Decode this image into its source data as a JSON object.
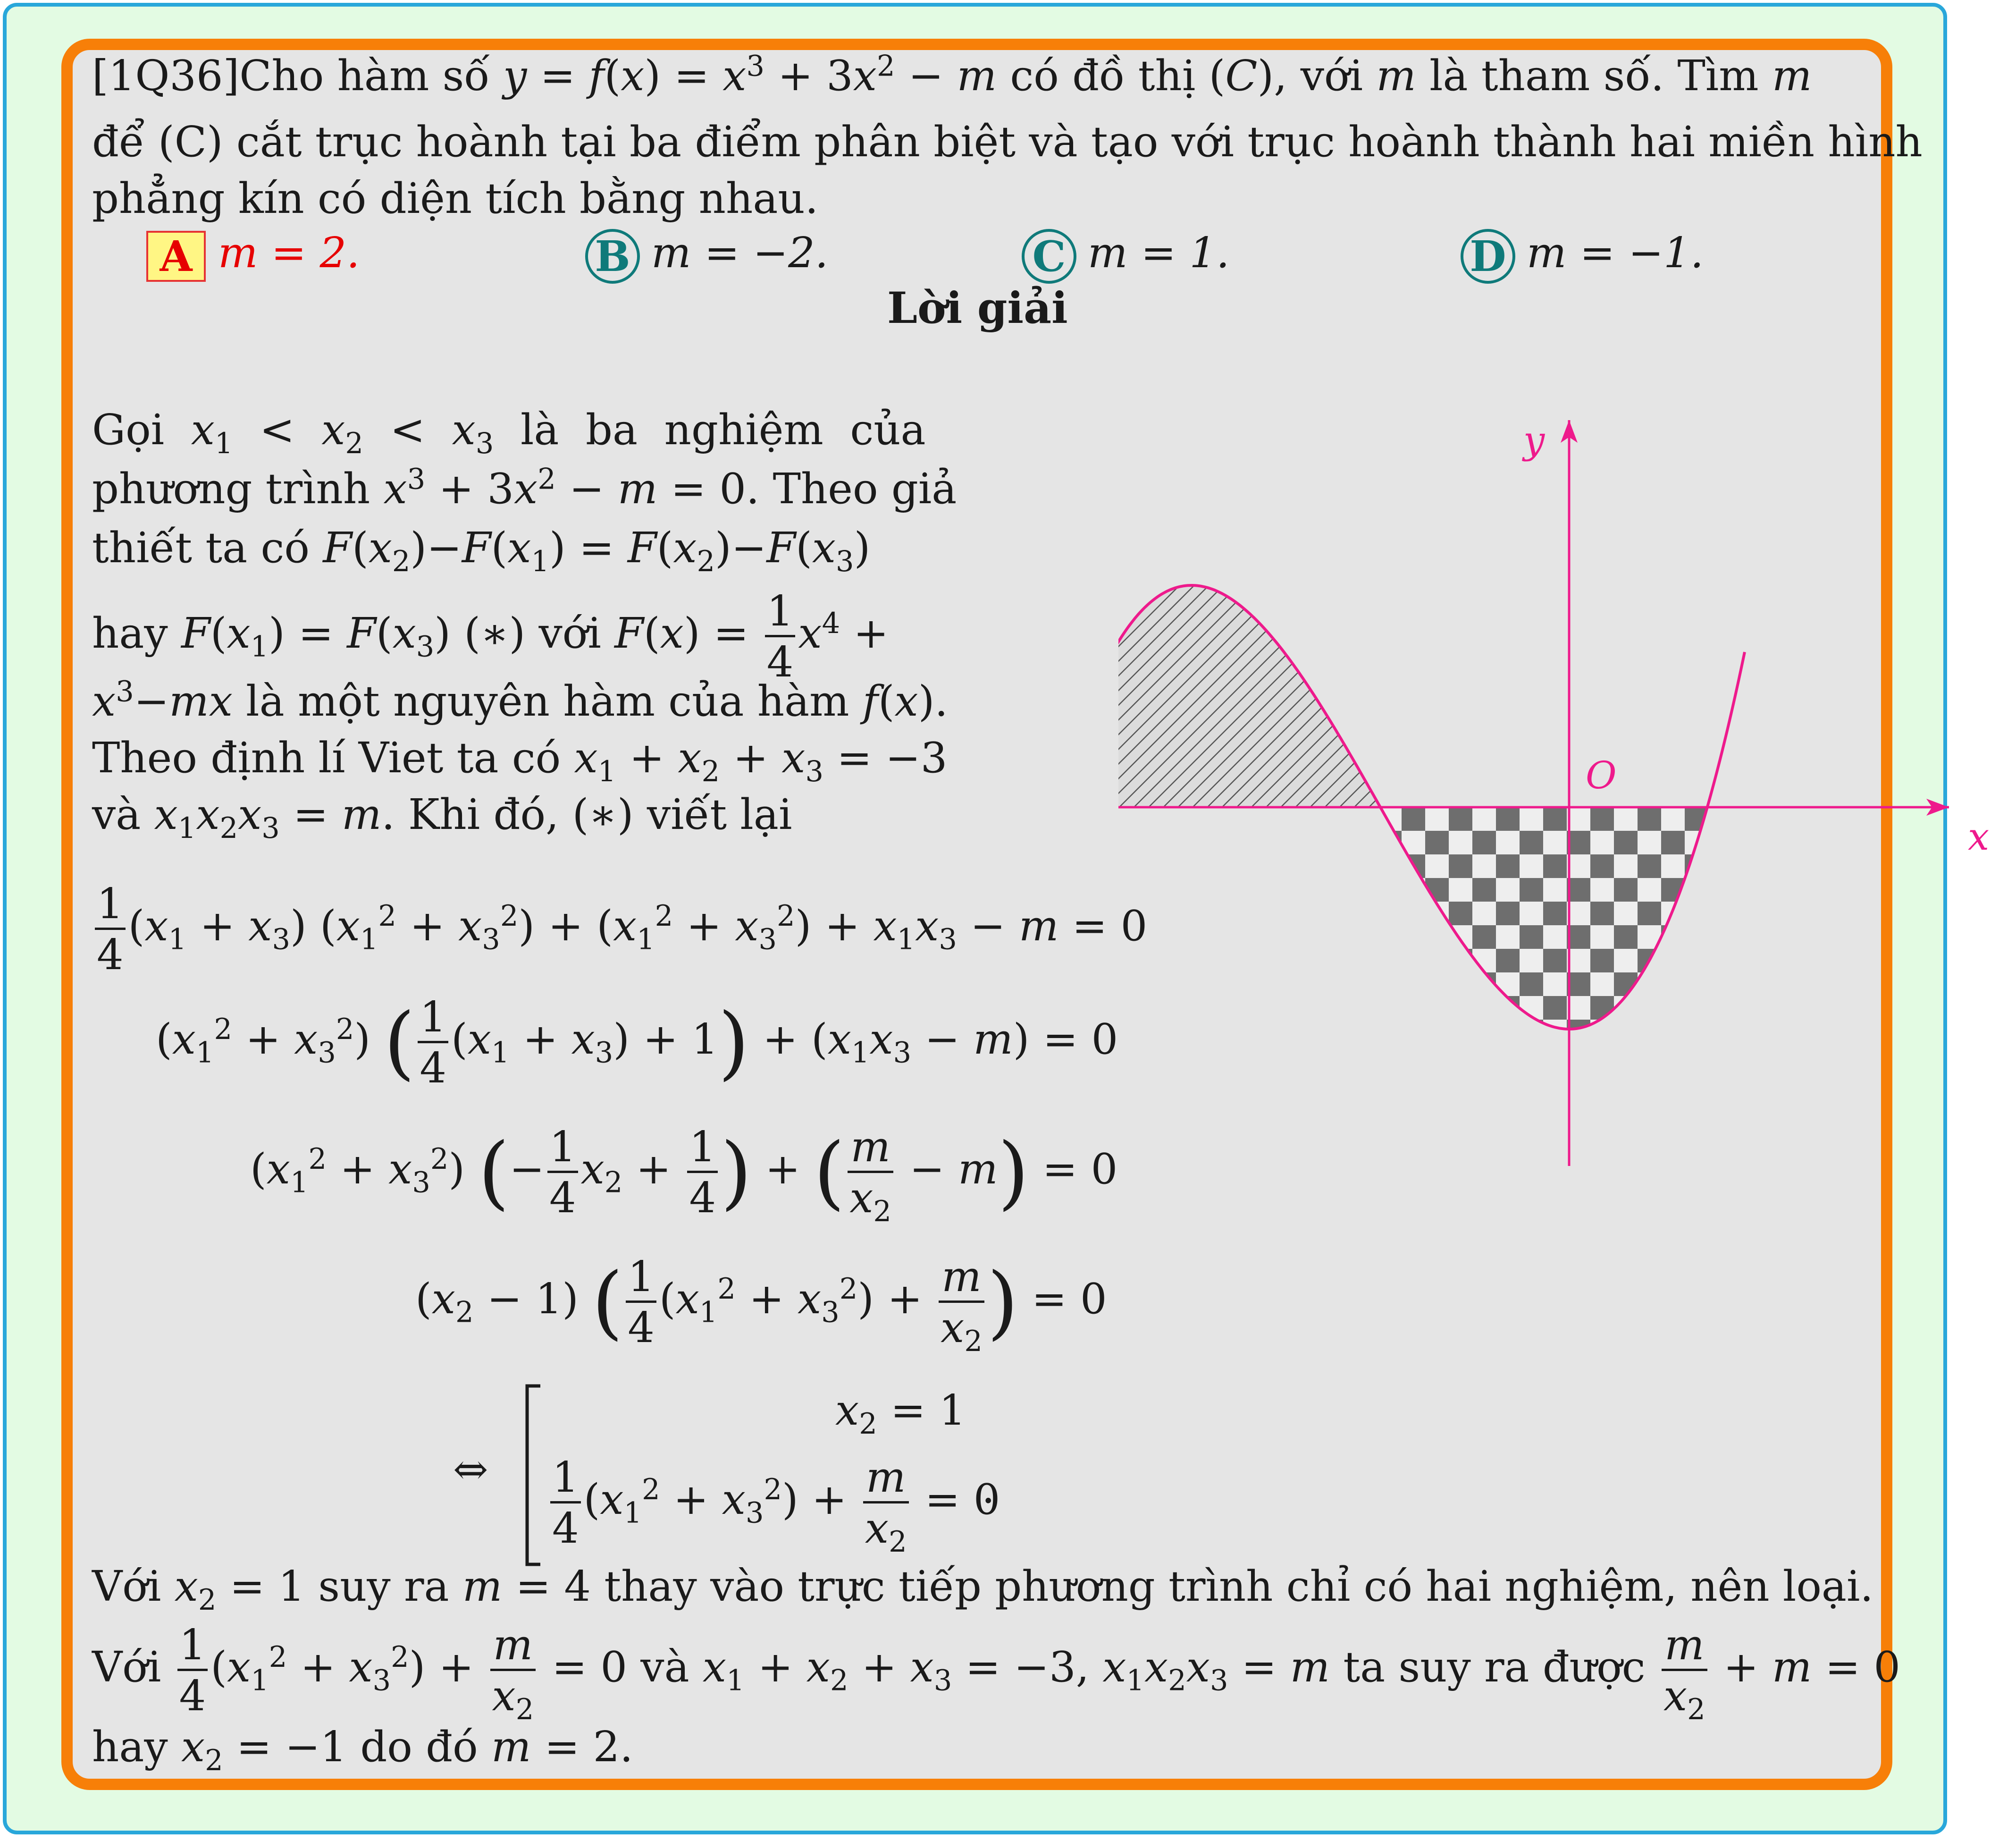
{
  "question": {
    "id": "[1Q36]",
    "line1": "Cho hàm số y = f(x) = x³ + 3x² − m có đồ thị (C), với m là tham số. Tìm m",
    "line2": "để (C) cắt trục hoành tại ba điểm phân biệt và tạo với trục hoành thành hai miền hình",
    "line3": "phẳng kín có diện tích bằng nhau."
  },
  "options": [
    {
      "letter": "A",
      "text": "m = 2.",
      "correct": true
    },
    {
      "letter": "B",
      "text": "m = −2.",
      "correct": false
    },
    {
      "letter": "C",
      "text": "m = 1.",
      "correct": false
    },
    {
      "letter": "D",
      "text": "m = −1.",
      "correct": false
    }
  ],
  "solution": {
    "heading": "Lời giải",
    "p1": "Gọi x₁ < x₂ < x₃ là ba nghiệm của",
    "p2": "phương trình x³ + 3x² − m = 0. Theo giả",
    "p3": "thiết ta có F(x₂)−F(x₁) = F(x₂)−F(x₃)",
    "p4": "hay F(x₁) = F(x₃) (∗) với F(x) = ¼x⁴ +",
    "p5": "x³−mx là một nguyên hàm của hàm f(x).",
    "p6": "Theo định lí Viet ta có x₁ + x₂ + x₃ = −3",
    "p7": "và x₁x₂x₃ = m. Khi đó, (∗) viết lại",
    "eq1": "¼(x₁ + x₃)(x₁² + x₃²) + (x₁² + x₃²) + x₁x₃ − m = 0",
    "eq2": "(x₁² + x₃²)(¼(x₁ + x₃) + 1) + (x₁x₃ − m) = 0",
    "eq3": "(x₁² + x₃²)(−¼x₂ + ¼) + (m/x₂ − m) = 0",
    "eq4": "(x₂ − 1)(¼(x₁² + x₃²) + m/x₂) = 0",
    "eq5a": "x₂ = 1",
    "eq5b": "¼(x₁² + x₃²) + m/x₂ = 0",
    "c1": "Với x₂ = 1 suy ra m = 4 thay vào trực tiếp phương trình chỉ có hai nghiệm, nên loại.",
    "c2": "Với ¼(x₁² + x₃²) + m/x₂ = 0 và x₁ + x₂ + x₃ = −3, x₁x₂x₃ = m ta suy ra được m/x₂ + m = 0",
    "c3": "hay x₂ = −1 do đó m = 2."
  },
  "graph": {
    "axis_x_label": "x",
    "axis_y_label": "y",
    "origin_label": "O",
    "curve_color": "#ee1a8c",
    "hatch_fill": "hatched",
    "checker_fill": "checkerboard"
  }
}
